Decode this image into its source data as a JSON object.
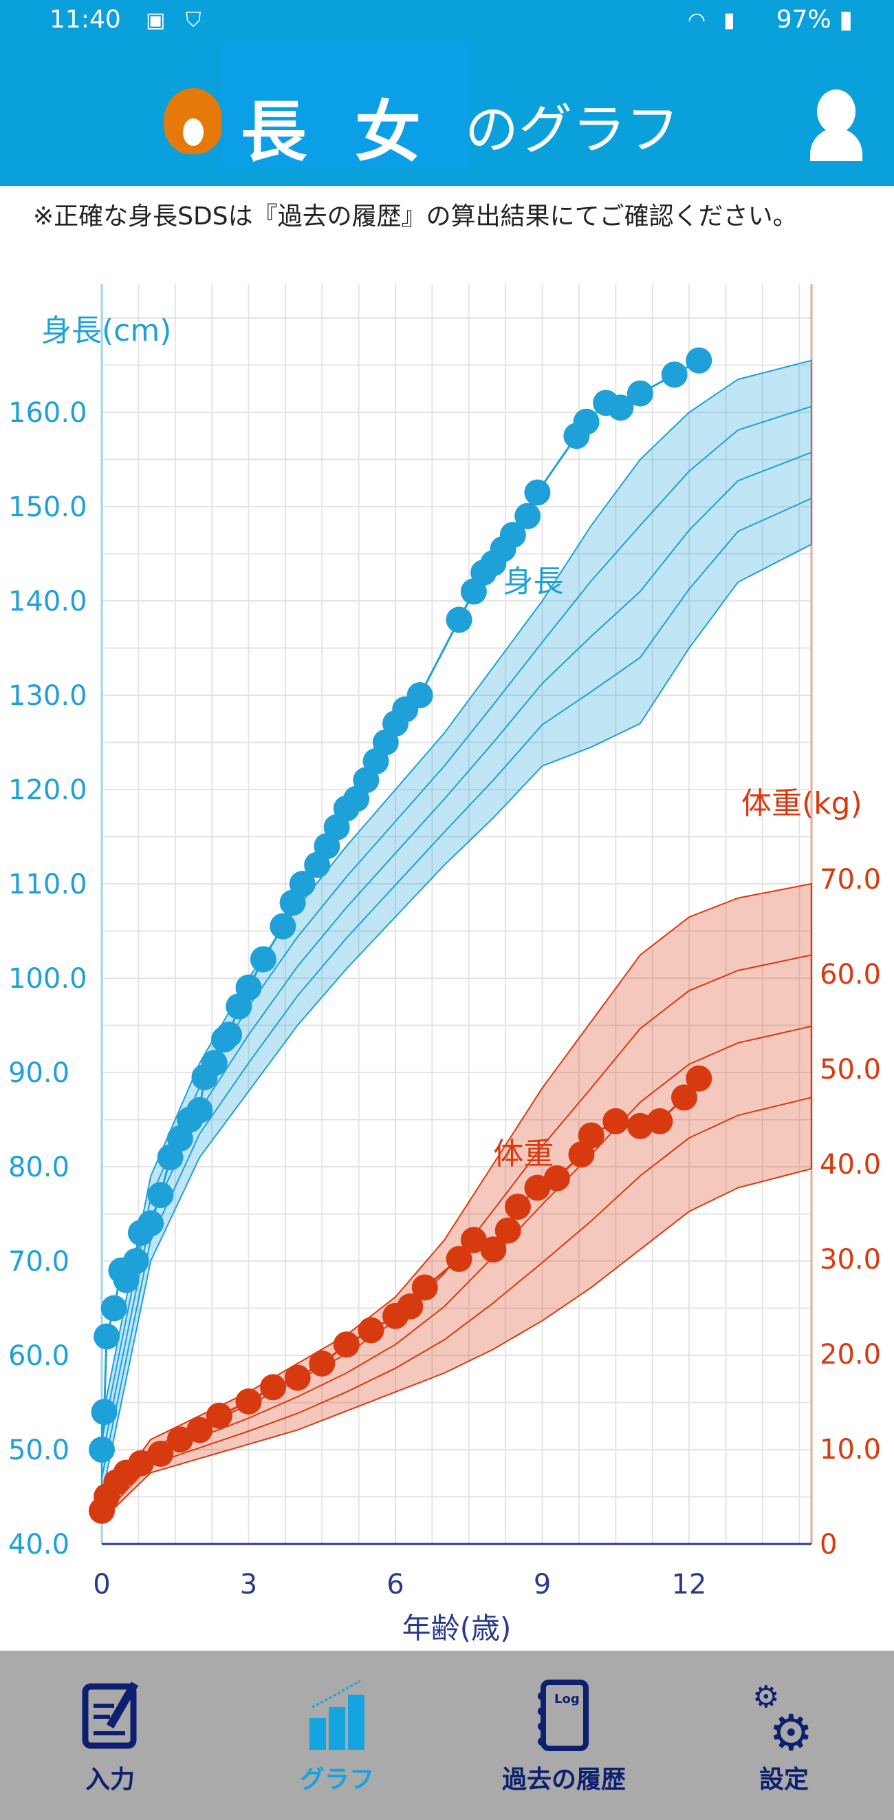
{
  "status_bar": {
    "time": "11:40",
    "battery": "97%"
  },
  "header": {
    "child_name": "長女",
    "title_suffix": "のグラフ"
  },
  "note": "※正確な身長SDSは『過去の履歴』の算出結果にてご確認ください。",
  "colors": {
    "header": "#0aa0dc",
    "height": "#1ea0d8",
    "weight": "#d83a10",
    "nav_active": "#14a4e0",
    "nav": "#0d1f6e"
  },
  "chart_data": {
    "type": "scatter",
    "xlabel": "年齢(歳)",
    "x_ticks": [
      "0",
      "3",
      "6",
      "9",
      "12"
    ],
    "xlim": [
      0,
      14.5
    ],
    "height_axis": {
      "label": "身長(cm)",
      "ylim": [
        40,
        170
      ],
      "ticks": [
        "40.0",
        "50.0",
        "60.0",
        "70.0",
        "80.0",
        "90.0",
        "100.0",
        "110.0",
        "120.0",
        "130.0",
        "140.0",
        "150.0",
        "160.0"
      ]
    },
    "weight_axis": {
      "label": "体重(kg)",
      "ylim": [
        0,
        70
      ],
      "ticks": [
        "0",
        "10.0",
        "20.0",
        "30.0",
        "40.0",
        "50.0",
        "60.0",
        "70.0"
      ]
    },
    "height_series": {
      "name": "身長",
      "label_at": [
        8.2,
        141
      ],
      "points": [
        [
          0,
          50
        ],
        [
          0.05,
          54
        ],
        [
          0.1,
          62
        ],
        [
          0.25,
          65
        ],
        [
          0.4,
          69
        ],
        [
          0.5,
          68
        ],
        [
          0.7,
          70
        ],
        [
          0.8,
          73
        ],
        [
          1.0,
          74
        ],
        [
          1.2,
          77
        ],
        [
          1.4,
          81
        ],
        [
          1.6,
          83
        ],
        [
          1.8,
          85
        ],
        [
          2.0,
          86
        ],
        [
          2.1,
          89.5
        ],
        [
          2.3,
          91
        ],
        [
          2.5,
          93.5
        ],
        [
          2.6,
          94
        ],
        [
          2.8,
          97
        ],
        [
          3.0,
          99
        ],
        [
          3.3,
          102
        ],
        [
          3.7,
          105.5
        ],
        [
          3.9,
          108
        ],
        [
          4.1,
          110
        ],
        [
          4.4,
          112
        ],
        [
          4.6,
          114
        ],
        [
          4.8,
          116
        ],
        [
          5.0,
          118
        ],
        [
          5.2,
          119
        ],
        [
          5.4,
          121
        ],
        [
          5.6,
          123
        ],
        [
          5.8,
          125
        ],
        [
          6.0,
          127
        ],
        [
          6.2,
          128.5
        ],
        [
          6.5,
          130
        ],
        [
          7.3,
          138
        ],
        [
          7.6,
          141
        ],
        [
          7.8,
          143
        ],
        [
          8.0,
          144
        ],
        [
          8.2,
          145.5
        ],
        [
          8.4,
          147
        ],
        [
          8.7,
          149
        ],
        [
          8.9,
          151.5
        ],
        [
          9.7,
          157.5
        ],
        [
          9.9,
          159
        ],
        [
          10.3,
          161
        ],
        [
          10.6,
          160.5
        ],
        [
          11.0,
          162
        ],
        [
          11.7,
          164
        ],
        [
          12.2,
          165.5
        ]
      ],
      "band_upper": [
        [
          0,
          53
        ],
        [
          1,
          79
        ],
        [
          2,
          91
        ],
        [
          3,
          100
        ],
        [
          4,
          107.5
        ],
        [
          5,
          114
        ],
        [
          6,
          120
        ],
        [
          7,
          126
        ],
        [
          8,
          133
        ],
        [
          9,
          140
        ],
        [
          10,
          148
        ],
        [
          11,
          155
        ],
        [
          12,
          160
        ],
        [
          13,
          163.5
        ],
        [
          14.5,
          165.5
        ]
      ],
      "band_lower": [
        [
          0,
          45
        ],
        [
          1,
          70
        ],
        [
          2,
          81
        ],
        [
          3,
          88
        ],
        [
          4,
          95
        ],
        [
          5,
          101
        ],
        [
          6,
          106.5
        ],
        [
          7,
          112
        ],
        [
          8,
          117
        ],
        [
          9,
          122.5
        ],
        [
          10,
          124.5
        ],
        [
          11,
          127
        ],
        [
          12,
          135
        ],
        [
          13,
          142
        ],
        [
          14.5,
          146
        ]
      ]
    },
    "weight_series": {
      "name": "体重",
      "label_at": [
        8.0,
        40
      ],
      "points": [
        [
          0,
          3.5
        ],
        [
          0.1,
          5
        ],
        [
          0.3,
          6.5
        ],
        [
          0.5,
          7.5
        ],
        [
          0.8,
          8.5
        ],
        [
          1.2,
          9.5
        ],
        [
          1.6,
          11
        ],
        [
          2.0,
          12
        ],
        [
          2.4,
          13.5
        ],
        [
          3.0,
          15
        ],
        [
          3.5,
          16.5
        ],
        [
          4.0,
          17.5
        ],
        [
          4.5,
          19
        ],
        [
          5.0,
          21
        ],
        [
          5.5,
          22.5
        ],
        [
          6.0,
          24
        ],
        [
          6.3,
          25
        ],
        [
          6.6,
          27
        ],
        [
          7.3,
          30
        ],
        [
          7.6,
          32
        ],
        [
          8.0,
          31
        ],
        [
          8.3,
          33
        ],
        [
          8.5,
          35.5
        ],
        [
          8.9,
          37.5
        ],
        [
          9.3,
          38.5
        ],
        [
          9.8,
          41
        ],
        [
          10.0,
          43
        ],
        [
          10.5,
          44.5
        ],
        [
          11.0,
          44
        ],
        [
          11.4,
          44.5
        ],
        [
          11.9,
          47
        ],
        [
          12.2,
          49
        ]
      ],
      "band_upper": [
        [
          0,
          4
        ],
        [
          1,
          11
        ],
        [
          2,
          13.5
        ],
        [
          3,
          16
        ],
        [
          4,
          19
        ],
        [
          5,
          22
        ],
        [
          6,
          26
        ],
        [
          7,
          32
        ],
        [
          8,
          40
        ],
        [
          9,
          48
        ],
        [
          10,
          55
        ],
        [
          11,
          62
        ],
        [
          12,
          66
        ],
        [
          13,
          68
        ],
        [
          14.5,
          69.5
        ]
      ],
      "band_lower": [
        [
          0,
          2.5
        ],
        [
          1,
          7.5
        ],
        [
          2,
          9
        ],
        [
          3,
          10.5
        ],
        [
          4,
          12
        ],
        [
          5,
          14
        ],
        [
          6,
          16
        ],
        [
          7,
          18
        ],
        [
          8,
          20.5
        ],
        [
          9,
          23.5
        ],
        [
          10,
          27
        ],
        [
          11,
          31
        ],
        [
          12,
          35
        ],
        [
          13,
          37.5
        ],
        [
          14.5,
          39.5
        ]
      ]
    }
  },
  "nav": [
    {
      "label": "入力"
    },
    {
      "label": "グラフ"
    },
    {
      "label": "過去の履歴"
    },
    {
      "label": "設定"
    }
  ]
}
